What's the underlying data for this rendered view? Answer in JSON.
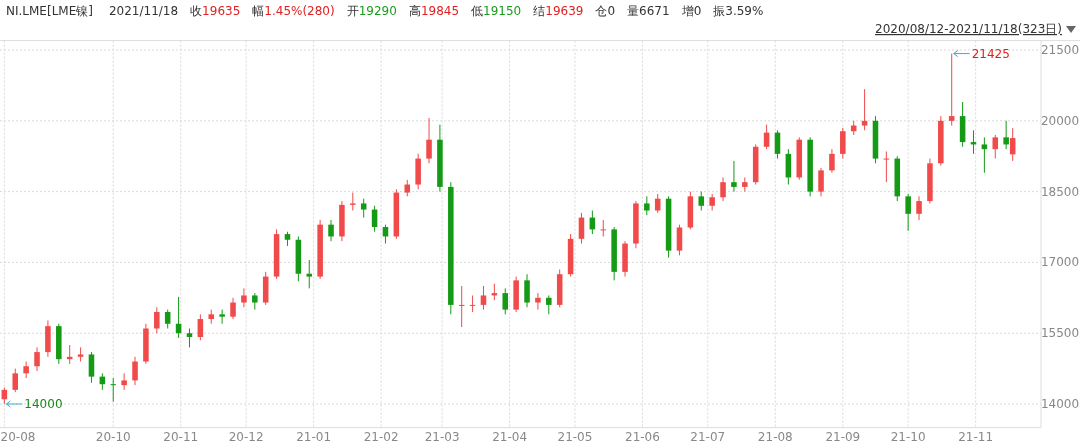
{
  "chart_data": {
    "type": "candlestick",
    "title": "NI.LME[LME镍]",
    "annotations": [
      "2021/11/18",
      "收19635",
      "幅1.45%(280)",
      "开19290",
      "高19845",
      "低19150",
      "结19639",
      "仓0",
      "量6671",
      "增0",
      "振3.59%",
      "2020/08/12-2021/11/18(323日)",
      {
        "text": "14000",
        "x": "2020-08-12",
        "y": 14000
      },
      {
        "text": "21425",
        "x": "2021-10-21",
        "y": 21425
      }
    ],
    "x": [
      "2020-08-12",
      "2020-08-17",
      "2020-08-22",
      "2020-08-27",
      "2020-09-01",
      "2020-09-06",
      "2020-09-11",
      "2020-09-16",
      "2020-09-21",
      "2020-09-26",
      "2020-10-01",
      "2020-10-06",
      "2020-10-11",
      "2020-10-16",
      "2020-10-21",
      "2020-10-26",
      "2020-10-31",
      "2020-11-05",
      "2020-11-10",
      "2020-11-15",
      "2020-11-20",
      "2020-11-25",
      "2020-11-30",
      "2020-12-05",
      "2020-12-10",
      "2020-12-15",
      "2020-12-20",
      "2020-12-25",
      "2020-12-30",
      "2021-01-04",
      "2021-01-09",
      "2021-01-14",
      "2021-01-19",
      "2021-01-24",
      "2021-01-29",
      "2021-02-03",
      "2021-02-08",
      "2021-02-13",
      "2021-02-18",
      "2021-02-23",
      "2021-02-28",
      "2021-03-05",
      "2021-03-10",
      "2021-03-15",
      "2021-03-20",
      "2021-03-25",
      "2021-03-30",
      "2021-04-04",
      "2021-04-09",
      "2021-04-14",
      "2021-04-19",
      "2021-04-24",
      "2021-04-29",
      "2021-05-04",
      "2021-05-09",
      "2021-05-14",
      "2021-05-19",
      "2021-05-24",
      "2021-05-29",
      "2021-06-03",
      "2021-06-08",
      "2021-06-13",
      "2021-06-18",
      "2021-06-23",
      "2021-06-28",
      "2021-07-03",
      "2021-07-08",
      "2021-07-13",
      "2021-07-18",
      "2021-07-23",
      "2021-07-28",
      "2021-08-02",
      "2021-08-07",
      "2021-08-12",
      "2021-08-17",
      "2021-08-22",
      "2021-08-27",
      "2021-09-01",
      "2021-09-06",
      "2021-09-11",
      "2021-09-16",
      "2021-09-21",
      "2021-09-26",
      "2021-10-01",
      "2021-10-06",
      "2021-10-11",
      "2021-10-16",
      "2021-10-21",
      "2021-10-26",
      "2021-10-31",
      "2021-11-05",
      "2021-11-10",
      "2021-11-15",
      "2021-11-18"
    ],
    "ohlc": [
      [
        14100,
        14350,
        14000,
        14300
      ],
      [
        14300,
        14750,
        14250,
        14650
      ],
      [
        14650,
        14900,
        14550,
        14800
      ],
      [
        14800,
        15200,
        14700,
        15100
      ],
      [
        15100,
        15770,
        15000,
        15650
      ],
      [
        15650,
        15700,
        14850,
        14950
      ],
      [
        14950,
        15250,
        14850,
        15000
      ],
      [
        15000,
        15200,
        14900,
        15050
      ],
      [
        15050,
        15100,
        14450,
        14580
      ],
      [
        14580,
        14650,
        14300,
        14420
      ],
      [
        14420,
        14550,
        14050,
        14400
      ],
      [
        14400,
        14650,
        14300,
        14500
      ],
      [
        14500,
        15000,
        14400,
        14900
      ],
      [
        14900,
        15700,
        14850,
        15600
      ],
      [
        15600,
        16050,
        15500,
        15950
      ],
      [
        15950,
        16000,
        15600,
        15700
      ],
      [
        15700,
        16270,
        15400,
        15500
      ],
      [
        15500,
        15600,
        15200,
        15420
      ],
      [
        15420,
        15900,
        15350,
        15800
      ],
      [
        15800,
        16000,
        15700,
        15900
      ],
      [
        15900,
        16000,
        15700,
        15850
      ],
      [
        15850,
        16250,
        15800,
        16150
      ],
      [
        16150,
        16450,
        16050,
        16300
      ],
      [
        16300,
        16350,
        16000,
        16150
      ],
      [
        16150,
        16800,
        16100,
        16700
      ],
      [
        16700,
        17700,
        16650,
        17600
      ],
      [
        17600,
        17650,
        17350,
        17480
      ],
      [
        17480,
        17550,
        16600,
        16760
      ],
      [
        16760,
        17050,
        16450,
        16700
      ],
      [
        16700,
        17900,
        16650,
        17800
      ],
      [
        17800,
        17900,
        17450,
        17550
      ],
      [
        17550,
        18300,
        17450,
        18220
      ],
      [
        18220,
        18480,
        18100,
        18250
      ],
      [
        18250,
        18350,
        17950,
        18120
      ],
      [
        18120,
        18200,
        17650,
        17750
      ],
      [
        17750,
        17800,
        17400,
        17550
      ],
      [
        17550,
        18550,
        17500,
        18480
      ],
      [
        18480,
        18750,
        18400,
        18650
      ],
      [
        18650,
        19300,
        18550,
        19200
      ],
      [
        19200,
        20060,
        19100,
        19600
      ],
      [
        19600,
        19920,
        18500,
        18600
      ],
      [
        18600,
        18700,
        15900,
        16100
      ],
      [
        16100,
        16500,
        15630,
        16100
      ],
      [
        16100,
        16300,
        15950,
        16100
      ],
      [
        16100,
        16500,
        16000,
        16300
      ],
      [
        16300,
        16550,
        16200,
        16350
      ],
      [
        16350,
        16450,
        15900,
        16000
      ],
      [
        16000,
        16700,
        15950,
        16620
      ],
      [
        16620,
        16750,
        16050,
        16150
      ],
      [
        16150,
        16350,
        16000,
        16250
      ],
      [
        16250,
        16300,
        15900,
        16100
      ],
      [
        16100,
        16850,
        16050,
        16750
      ],
      [
        16750,
        17600,
        16700,
        17500
      ],
      [
        17500,
        18050,
        17400,
        17950
      ],
      [
        17950,
        18100,
        17600,
        17700
      ],
      [
        17700,
        17900,
        17550,
        17700
      ],
      [
        17700,
        17750,
        16620,
        16800
      ],
      [
        16800,
        17450,
        16700,
        17400
      ],
      [
        17400,
        18300,
        17300,
        18250
      ],
      [
        18250,
        18400,
        18000,
        18100
      ],
      [
        18100,
        18450,
        18050,
        18350
      ],
      [
        18350,
        18400,
        17100,
        17250
      ],
      [
        17250,
        17800,
        17150,
        17740
      ],
      [
        17740,
        18500,
        17700,
        18400
      ],
      [
        18400,
        18500,
        18100,
        18200
      ],
      [
        18200,
        18450,
        18100,
        18380
      ],
      [
        18380,
        18800,
        18300,
        18700
      ],
      [
        18700,
        19150,
        18500,
        18600
      ],
      [
        18600,
        18800,
        18500,
        18700
      ],
      [
        18700,
        19500,
        18650,
        19450
      ],
      [
        19450,
        19920,
        19400,
        19750
      ],
      [
        19750,
        19800,
        19200,
        19300
      ],
      [
        19300,
        19400,
        18650,
        18800
      ],
      [
        18800,
        19650,
        18750,
        19600
      ],
      [
        19600,
        19650,
        18400,
        18500
      ],
      [
        18500,
        19000,
        18400,
        18950
      ],
      [
        18950,
        19400,
        18900,
        19300
      ],
      [
        19300,
        19850,
        19200,
        19780
      ],
      [
        19780,
        20000,
        19700,
        19900
      ],
      [
        19900,
        20670,
        19800,
        20000
      ],
      [
        20000,
        20100,
        19100,
        19200
      ],
      [
        19200,
        19350,
        18700,
        19200
      ],
      [
        19200,
        19250,
        18300,
        18400
      ],
      [
        18400,
        18450,
        17670,
        18030
      ],
      [
        18030,
        18400,
        17900,
        18300
      ],
      [
        18300,
        19200,
        18250,
        19100
      ],
      [
        19100,
        20100,
        19050,
        20000
      ],
      [
        20000,
        21425,
        19900,
        20100
      ],
      [
        20100,
        20400,
        19450,
        19550
      ],
      [
        19550,
        19800,
        19300,
        19500
      ],
      [
        19500,
        19650,
        18900,
        19400
      ],
      [
        19400,
        19700,
        19200,
        19650
      ],
      [
        19650,
        20000,
        19400,
        19500
      ],
      [
        19290,
        19845,
        19150,
        19635
      ]
    ],
    "xlim": [
      "2020-08-10",
      "2021-12-01"
    ],
    "ylim": [
      13500,
      21700
    ],
    "xticks": [
      {
        "value": "2020-08-12",
        "label": "20-08"
      },
      {
        "value": "2020-10-01",
        "label": "20-10"
      },
      {
        "value": "2020-11-01",
        "label": "20-11"
      },
      {
        "value": "2020-12-01",
        "label": "20-12"
      },
      {
        "value": "2021-01-01",
        "label": "21-01"
      },
      {
        "value": "2021-02-01",
        "label": "21-02"
      },
      {
        "value": "2021-03-01",
        "label": "21-03"
      },
      {
        "value": "2021-04-01",
        "label": "21-04"
      },
      {
        "value": "2021-05-01",
        "label": "21-05"
      },
      {
        "value": "2021-06-01",
        "label": "21-06"
      },
      {
        "value": "2021-07-01",
        "label": "21-07"
      },
      {
        "value": "2021-08-01",
        "label": "21-08"
      },
      {
        "value": "2021-09-01",
        "label": "21-09"
      },
      {
        "value": "2021-10-01",
        "label": "21-10"
      },
      {
        "value": "2021-11-01",
        "label": "21-11"
      }
    ],
    "yticks": [
      14000,
      15500,
      17000,
      18500,
      20000,
      21500
    ],
    "grid": true
  }
}
